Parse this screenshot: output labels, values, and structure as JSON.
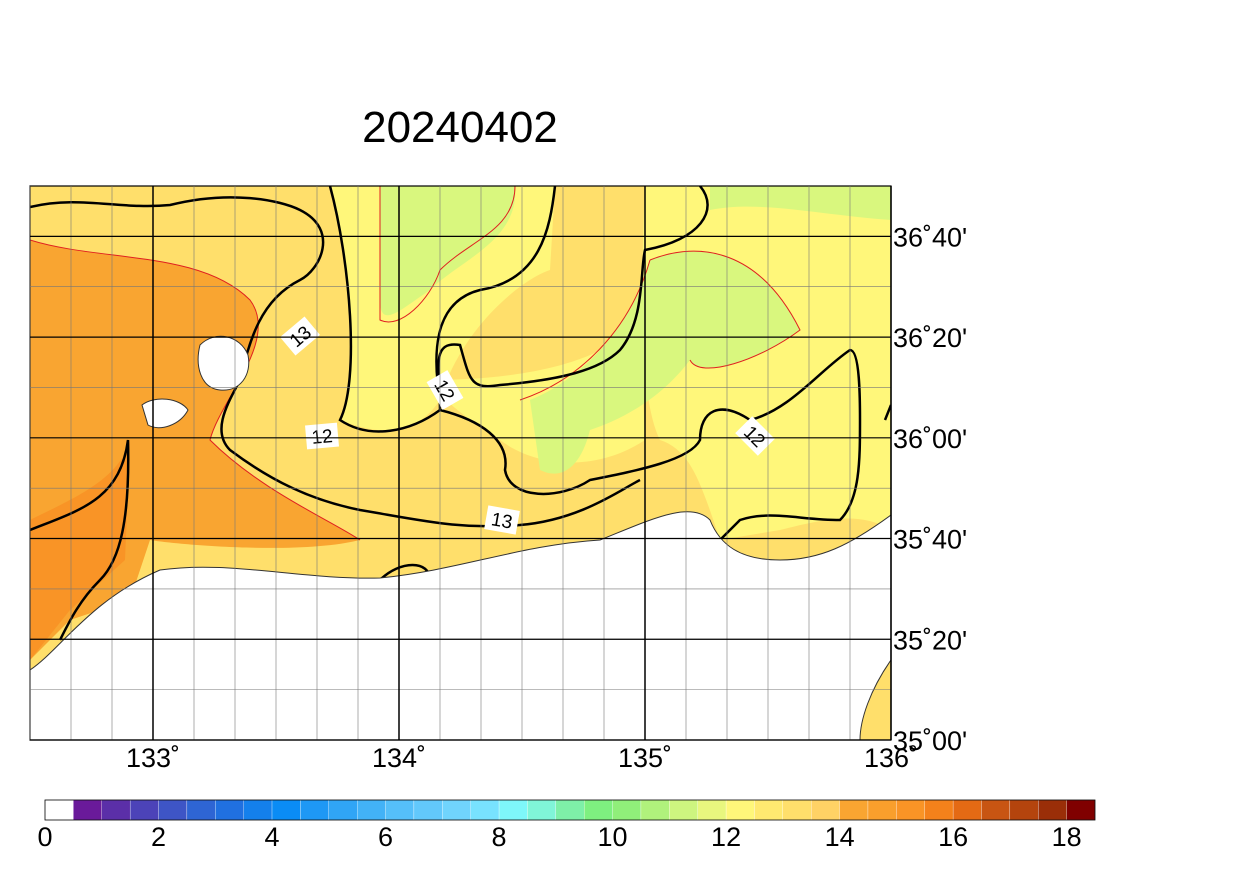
{
  "title": "20240402",
  "map": {
    "xlim": [
      132.5,
      136
    ],
    "ylim": [
      35,
      36.8333
    ],
    "xticks": [
      {
        "value": 133,
        "label": "133˚"
      },
      {
        "value": 134,
        "label": "134˚"
      },
      {
        "value": 135,
        "label": "135˚"
      },
      {
        "value": 136,
        "label": "136˚"
      }
    ],
    "yticks": [
      {
        "value": 35,
        "label": "35˚00'"
      },
      {
        "value": 35.3333,
        "label": "35˚20'"
      },
      {
        "value": 35.6667,
        "label": "35˚40'"
      },
      {
        "value": 36,
        "label": "36˚00'"
      },
      {
        "value": 36.3333,
        "label": "36˚20'"
      },
      {
        "value": 36.6667,
        "label": "36˚40'"
      }
    ],
    "contour_labels": [
      "13",
      "12",
      "12",
      "12",
      "13"
    ]
  },
  "colorbar": {
    "range": [
      0,
      18.5
    ],
    "ticks": [
      0,
      2,
      4,
      6,
      8,
      10,
      12,
      14,
      16,
      18
    ],
    "colors": [
      "#ffffff",
      "#6a1a9a",
      "#5b2fa8",
      "#4c43b8",
      "#3e55c6",
      "#2e65d4",
      "#2070e0",
      "#1480ec",
      "#0a8cf5",
      "#1e98f5",
      "#30a5f5",
      "#42b2f7",
      "#55bff9",
      "#62c8fb",
      "#70d4fd",
      "#78e2fe",
      "#7ef7fa",
      "#80f5d8",
      "#7ef0a8",
      "#7ef080",
      "#90ef7a",
      "#b0f27c",
      "#cdf57f",
      "#e8f77e",
      "#fff77a",
      "#ffe970",
      "#ffdf6b",
      "#ffd265",
      "#f9a531",
      "#f99f2c",
      "#f99426",
      "#f4811b",
      "#e46a14",
      "#c85512",
      "#b4440d",
      "#9a2e08",
      "#800000"
    ]
  }
}
